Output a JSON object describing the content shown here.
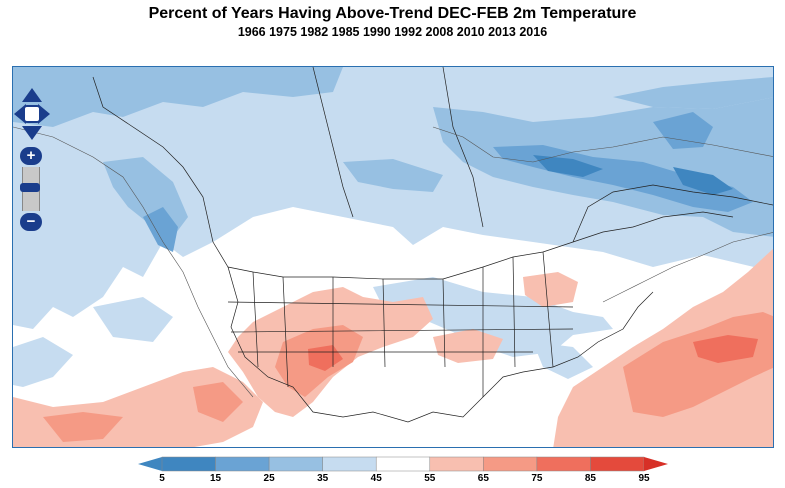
{
  "title": "Percent of Years Having Above-Trend DEC-FEB 2m Temperature",
  "subtitle": "1966 1975 1982 1985 1990 1992 2008 2010 2013 2016",
  "controls": {
    "pan_icon": "four-way-arrow-icon",
    "zoom_in_label": "+",
    "zoom_out_label": "−",
    "zoom_slider_icon": "zoom-slider-icon"
  },
  "colorbar": {
    "ticks": [
      "5",
      "15",
      "25",
      "35",
      "45",
      "55",
      "65",
      "75",
      "85",
      "95"
    ],
    "colors": [
      "#3f86c0",
      "#6aa3d4",
      "#97c0e2",
      "#c6dcf0",
      "#ffffff",
      "#f8bfb0",
      "#f59a85",
      "#ef6f5d",
      "#e44a3c"
    ],
    "under_color": "#3f86c0",
    "over_color": "#d73027"
  }
}
